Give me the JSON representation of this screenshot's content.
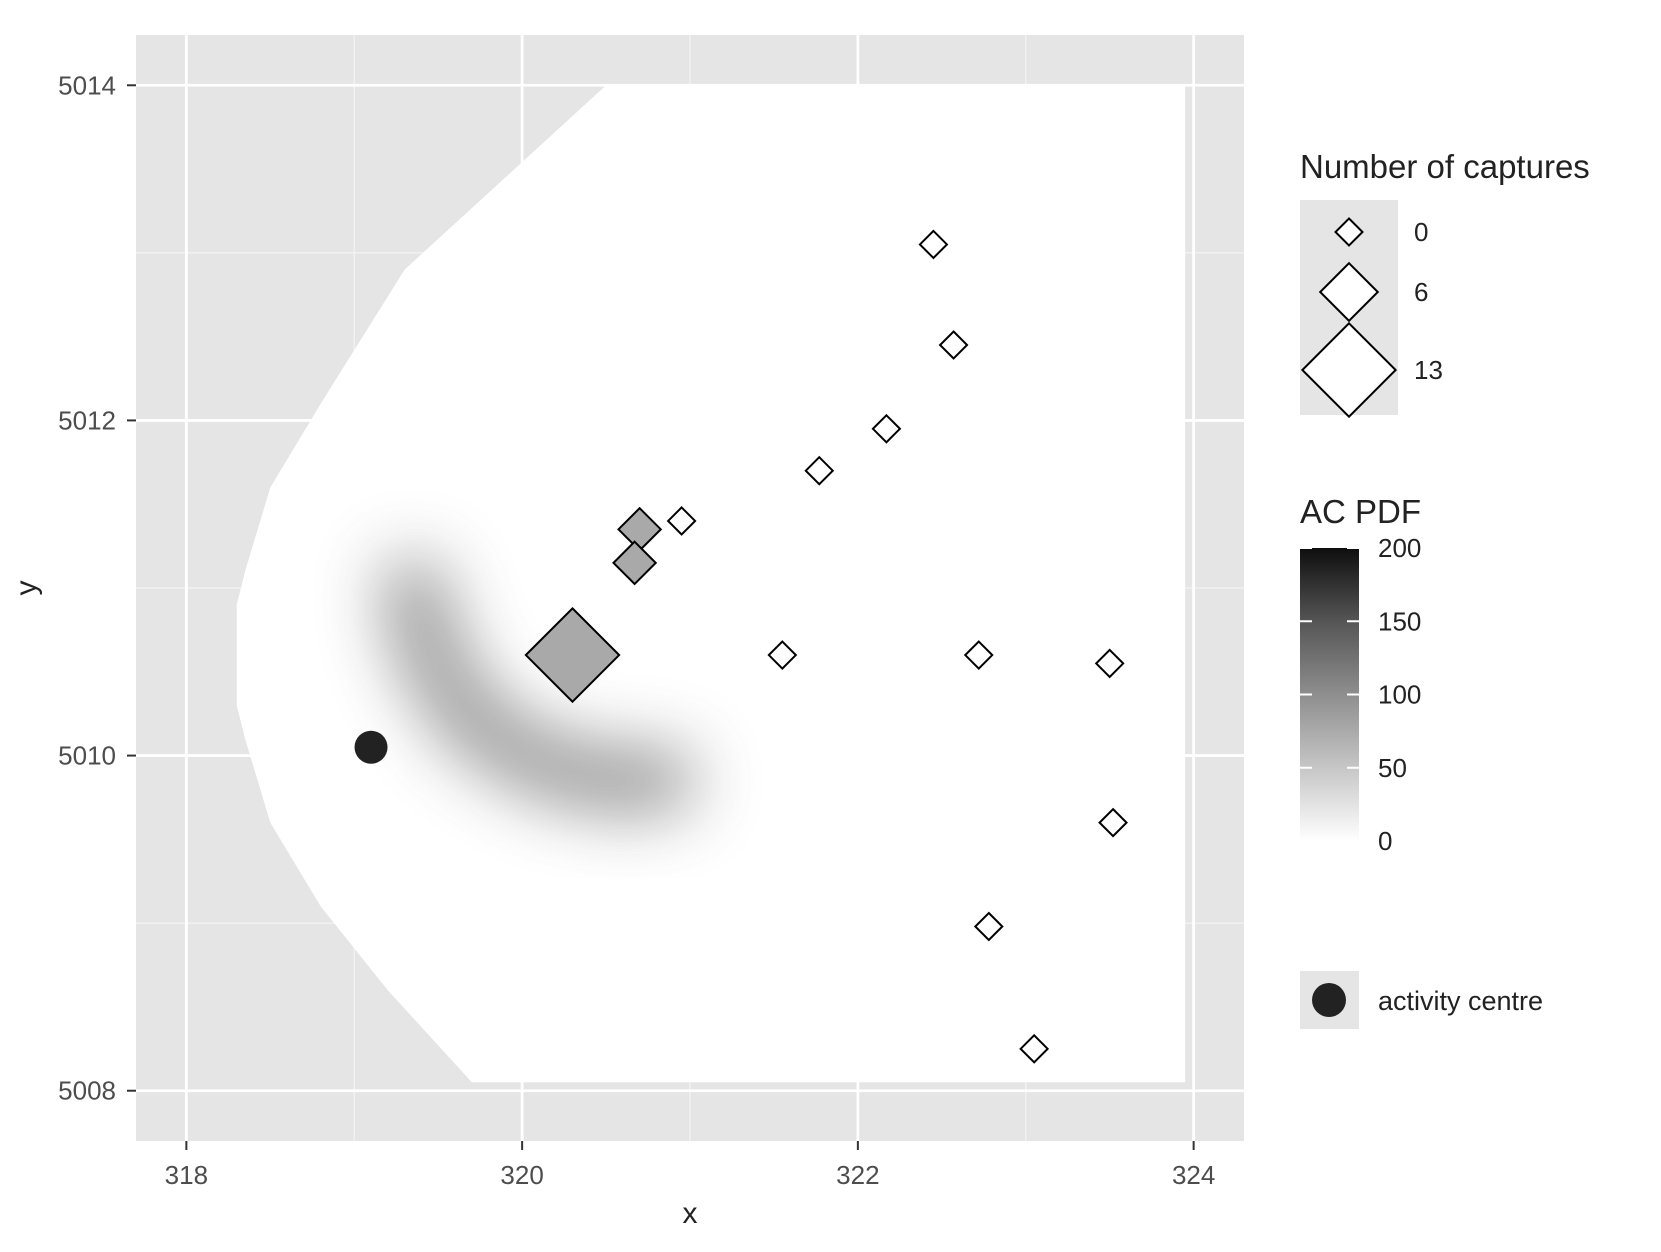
{
  "chart_data": {
    "type": "scatter",
    "xlabel": "x",
    "ylabel": "y",
    "xlim": [
      317.7,
      324.3
    ],
    "ylim": [
      5007.7,
      5014.3
    ],
    "x_ticks": [
      318,
      320,
      322,
      324
    ],
    "y_ticks": [
      5008,
      5010,
      5012,
      5014
    ],
    "x_tick_labels": [
      "318",
      "320",
      "322",
      "324"
    ],
    "y_tick_labels": [
      "5008",
      "5010",
      "5012",
      "5014"
    ],
    "grid": true,
    "panel_background": "#e5e5e5",
    "mask_fill": "#ffffff",
    "mask_boundary": [
      [
        320.5,
        5014.0
      ],
      [
        319.3,
        5012.9
      ],
      [
        318.8,
        5012.1
      ],
      [
        318.5,
        5011.6
      ],
      [
        318.35,
        5011.1
      ],
      [
        318.3,
        5010.9
      ],
      [
        318.3,
        5010.3
      ],
      [
        318.35,
        5010.1
      ],
      [
        318.5,
        5009.6
      ],
      [
        318.8,
        5009.1
      ],
      [
        319.2,
        5008.6
      ],
      [
        319.7,
        5008.05
      ],
      [
        323.95,
        5008.05
      ],
      [
        323.95,
        5014.0
      ]
    ],
    "ac_pdf_surface": {
      "name": "AC PDF",
      "centerline": [
        [
          319.35,
          5011.0
        ],
        [
          319.45,
          5010.6
        ],
        [
          319.7,
          5010.2
        ],
        [
          320.1,
          5009.95
        ],
        [
          320.5,
          5009.85
        ],
        [
          320.85,
          5009.85
        ]
      ],
      "peak_value": 90
    },
    "series": [
      {
        "name": "Number of captures",
        "marker": "diamond",
        "points": [
          {
            "x": 322.45,
            "y": 5013.05,
            "captures": 0
          },
          {
            "x": 322.57,
            "y": 5012.45,
            "captures": 0
          },
          {
            "x": 322.17,
            "y": 5011.95,
            "captures": 0
          },
          {
            "x": 321.77,
            "y": 5011.7,
            "captures": 0
          },
          {
            "x": 320.95,
            "y": 5011.4,
            "captures": 0
          },
          {
            "x": 320.7,
            "y": 5011.35,
            "captures": 3
          },
          {
            "x": 320.67,
            "y": 5011.15,
            "captures": 3
          },
          {
            "x": 320.3,
            "y": 5010.6,
            "captures": 13
          },
          {
            "x": 321.55,
            "y": 5010.6,
            "captures": 0
          },
          {
            "x": 322.72,
            "y": 5010.6,
            "captures": 0
          },
          {
            "x": 323.5,
            "y": 5010.55,
            "captures": 0
          },
          {
            "x": 323.52,
            "y": 5009.6,
            "captures": 0
          },
          {
            "x": 322.78,
            "y": 5008.98,
            "captures": 0
          },
          {
            "x": 323.05,
            "y": 5008.25,
            "captures": 0
          }
        ]
      },
      {
        "name": "activity centre",
        "marker": "circle",
        "color": "#222222",
        "points": [
          {
            "x": 319.1,
            "y": 5010.05
          }
        ]
      }
    ],
    "legend": {
      "position": "right",
      "size_legend": {
        "title": "Number of captures",
        "entries": [
          {
            "label": "0",
            "value": 0
          },
          {
            "label": "6",
            "value": 6
          },
          {
            "label": "13",
            "value": 13
          }
        ]
      },
      "fill_legend": {
        "title": "AC PDF",
        "ticks": [
          {
            "label": "200",
            "value": 200
          },
          {
            "label": "150",
            "value": 150
          },
          {
            "label": "100",
            "value": 100
          },
          {
            "label": "50",
            "value": 50
          },
          {
            "label": "0",
            "value": 0
          }
        ],
        "range": [
          0,
          200
        ]
      },
      "ac_legend": {
        "label": "activity centre"
      }
    }
  }
}
